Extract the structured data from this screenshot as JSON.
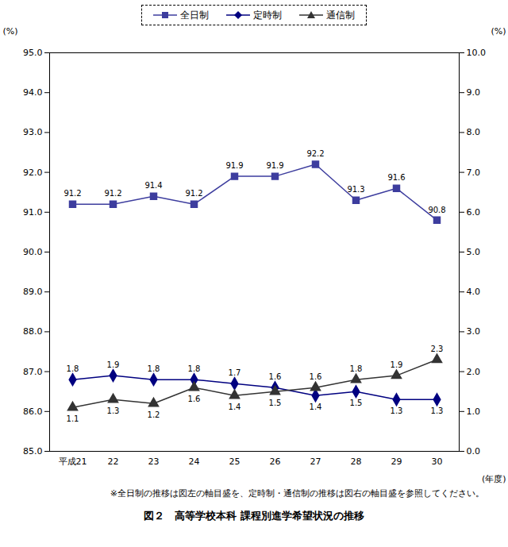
{
  "chart_data": {
    "type": "line",
    "title": "図２　高等学校本科 課程別進学希望状況の推移",
    "note": "※全日制の推移は図左の軸目盛を、定時制・通信制の推移は図右の軸目盛を参照してください。",
    "x_label": "(年度)",
    "y_label": "(%)",
    "y2_label": "(%)",
    "categories": [
      "平成21",
      "22",
      "23",
      "24",
      "25",
      "26",
      "27",
      "28",
      "29",
      "30"
    ],
    "series": [
      {
        "name": "全日制",
        "color": "#3d3d9e",
        "marker": "square",
        "values": [
          91.2,
          91.2,
          91.4,
          91.2,
          91.9,
          91.9,
          92.2,
          91.3,
          91.6,
          90.8
        ]
      },
      {
        "name": "定時制",
        "color": "#000080",
        "marker": "diamond",
        "axis": "y2",
        "values": [
          1.8,
          1.9,
          1.8,
          1.8,
          1.7,
          1.6,
          1.4,
          1.5,
          1.3,
          1.3
        ]
      },
      {
        "name": "通信制",
        "color": "#333333",
        "marker": "triangle",
        "axis": "y2",
        "values": [
          1.1,
          1.3,
          1.2,
          1.6,
          1.4,
          1.5,
          1.6,
          1.8,
          1.9,
          2.3
        ]
      }
    ],
    "ylim": [
      85,
      95
    ],
    "yticks": [
      {
        "value": 85,
        "label": "85.0"
      },
      {
        "value": 86,
        "label": "86.0"
      },
      {
        "value": 87,
        "label": "87.0"
      },
      {
        "value": 88,
        "label": "88.0"
      },
      {
        "value": 89,
        "label": "89.0"
      },
      {
        "value": 90,
        "label": "90.0"
      },
      {
        "value": 91,
        "label": "91.0"
      },
      {
        "value": 92,
        "label": "92.0"
      },
      {
        "value": 93,
        "label": "93.0"
      },
      {
        "value": 94,
        "label": "94.0"
      },
      {
        "value": 95,
        "label": "95.0"
      }
    ],
    "y2lim": [
      0,
      10
    ],
    "y2ticks": [
      {
        "value": 0,
        "label": "0.0"
      },
      {
        "value": 1,
        "label": "1.0"
      },
      {
        "value": 2,
        "label": "2.0"
      },
      {
        "value": 3,
        "label": "3.0"
      },
      {
        "value": 4,
        "label": "4.0"
      },
      {
        "value": 5,
        "label": "5.0"
      },
      {
        "value": 6,
        "label": "6.0"
      },
      {
        "value": 7,
        "label": "7.0"
      },
      {
        "value": 8,
        "label": "8.0"
      },
      {
        "value": 9,
        "label": "9.0"
      },
      {
        "value": 10,
        "label": "10.0"
      }
    ],
    "data_labels": true,
    "legend": "top",
    "grid": false
  }
}
